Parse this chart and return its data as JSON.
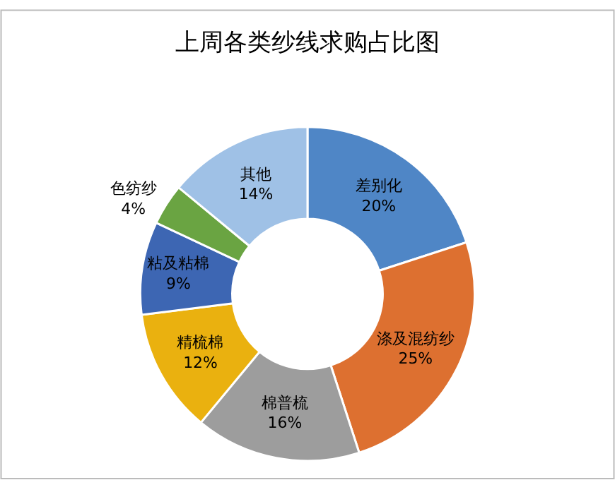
{
  "chart_data": {
    "type": "donut",
    "title": "上周各类纱线求购占比图",
    "categories": [
      "差别化",
      "涤及混纺纱",
      "棉普梳",
      "精梳棉",
      "粘及粘棉",
      "色纺纱",
      "其他"
    ],
    "values": [
      20,
      25,
      16,
      12,
      9,
      4,
      14
    ],
    "value_labels": [
      "20%",
      "25%",
      "16%",
      "12%",
      "9%",
      "4%",
      "14%"
    ],
    "colors": [
      "#4f86c6",
      "#dd7030",
      "#9d9d9d",
      "#eab10f",
      "#3d66b3",
      "#6aa442",
      "#9fc1e6"
    ],
    "legend": false
  }
}
